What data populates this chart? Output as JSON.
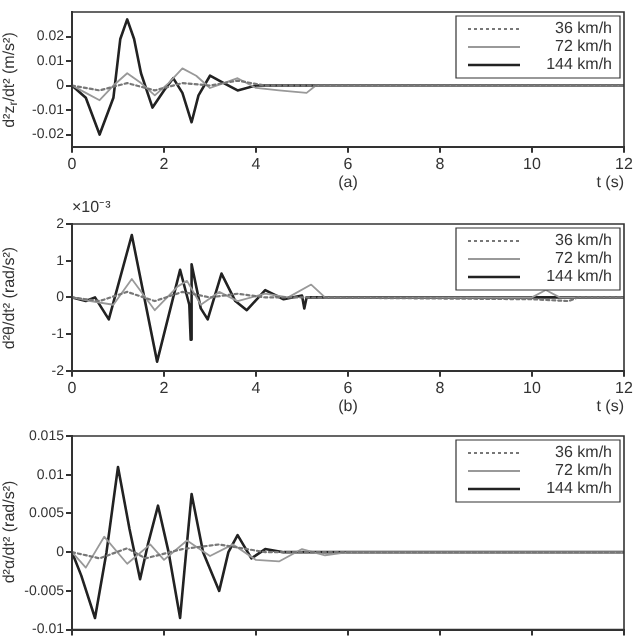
{
  "chart_data": [
    {
      "type": "line",
      "ylabel": "d²z$_{r}$/dt² (m/s²)",
      "xlabel": "t (s)",
      "annotations": [
        "(a)"
      ],
      "xlim": [
        0,
        12
      ],
      "xticks": [
        0,
        2,
        4,
        6,
        8,
        10,
        12
      ],
      "ylim": [
        -0.025,
        0.03
      ],
      "yticks": [
        -0.02,
        -0.01,
        0,
        0.01,
        0.02
      ],
      "grid": false,
      "legend": "top right",
      "series": [
        {
          "name": "36 km/h",
          "color": "#777777",
          "line_style": "dotted",
          "x": [
            0,
            0.6,
            1.2,
            1.8,
            2.4,
            3.0,
            3.6,
            4.2,
            12
          ],
          "values": [
            0,
            -0.002,
            0.001,
            -0.002,
            0.001,
            0,
            0.002,
            0,
            0
          ]
        },
        {
          "name": "72 km/h",
          "color": "#999999",
          "line_style": "solid",
          "x": [
            0,
            0.3,
            0.6,
            0.9,
            1.2,
            1.5,
            1.8,
            2.1,
            2.4,
            2.7,
            3.0,
            3.3,
            3.6,
            4.0,
            4.5,
            5.1,
            5.3,
            6,
            12
          ],
          "values": [
            0,
            -0.003,
            -0.006,
            0,
            0.005,
            0.001,
            -0.004,
            0.001,
            0.007,
            0.004,
            -0.001,
            0.001,
            0.003,
            -0.001,
            -0.002,
            -0.003,
            0,
            0,
            0
          ]
        },
        {
          "name": "144 km/h",
          "color": "#222222",
          "line_style": "solid",
          "x": [
            0,
            0.3,
            0.6,
            0.9,
            1.05,
            1.2,
            1.35,
            1.5,
            1.75,
            2.0,
            2.2,
            2.4,
            2.6,
            2.75,
            3.0,
            3.3,
            3.6,
            4.0,
            4.3,
            6,
            12
          ],
          "values": [
            0,
            -0.005,
            -0.02,
            -0.005,
            0.019,
            0.027,
            0.019,
            0.005,
            -0.009,
            -0.002,
            0.003,
            -0.003,
            -0.015,
            -0.004,
            0.004,
            0.001,
            -0.002,
            0,
            0,
            0,
            0
          ]
        }
      ]
    },
    {
      "type": "line",
      "ylabel": "d²θ/dt² (rad/s²)",
      "xlabel": "t (s)",
      "annotations": [
        "(b)",
        "×10⁻³"
      ],
      "xlim": [
        0,
        12
      ],
      "xticks": [
        0,
        2,
        4,
        6,
        8,
        10,
        12
      ],
      "ylim": [
        -2,
        2
      ],
      "yticks": [
        -2,
        -1,
        0,
        1,
        2
      ],
      "grid": false,
      "legend": "top right",
      "series": [
        {
          "name": "36 km/h",
          "color": "#777777",
          "line_style": "dotted",
          "x": [
            0,
            0.6,
            1.2,
            1.8,
            2.4,
            3.0,
            3.6,
            4.2,
            5,
            10,
            10.8,
            11,
            12
          ],
          "values": [
            0,
            -0.1,
            0.15,
            -0.1,
            0.15,
            0,
            0.1,
            0,
            0,
            -0.05,
            -0.1,
            0,
            0
          ]
        },
        {
          "name": "72 km/h",
          "color": "#999999",
          "line_style": "solid",
          "x": [
            0,
            0.4,
            0.9,
            1.3,
            1.8,
            2.3,
            2.5,
            2.8,
            3.2,
            3.6,
            4.2,
            4.7,
            5.2,
            5.5,
            6,
            10,
            10.3,
            10.6,
            12
          ],
          "values": [
            0,
            -0.1,
            -0.2,
            0.5,
            -0.35,
            0.3,
            0.45,
            -0.2,
            0.15,
            -0.1,
            0.1,
            0,
            0.35,
            0,
            0,
            0,
            0.2,
            0,
            0
          ]
        },
        {
          "name": "144 km/h",
          "color": "#222222",
          "line_style": "solid",
          "x": [
            0,
            0.3,
            0.5,
            0.8,
            1.3,
            1.85,
            2.35,
            2.55,
            2.58,
            2.6,
            2.8,
            2.95,
            3.25,
            3.55,
            3.8,
            4.2,
            4.6,
            5.0,
            5.05,
            5.1,
            6,
            12
          ],
          "values": [
            0,
            -0.1,
            0,
            -0.6,
            1.7,
            -1.75,
            0.75,
            -0.2,
            -1.15,
            0.9,
            -0.3,
            -0.6,
            0.65,
            -0.1,
            -0.35,
            0.2,
            -0.05,
            0.05,
            -0.3,
            0,
            0,
            0
          ]
        }
      ]
    },
    {
      "type": "line",
      "ylabel": "d²α/dt² (rad/s²)",
      "tick_labels": "y",
      "xlim": [
        0,
        12
      ],
      "xticks": [
        0,
        2,
        4,
        6,
        8,
        10,
        12
      ],
      "ylim": [
        -0.01,
        0.015
      ],
      "yticks": [
        -0.01,
        -0.005,
        0,
        0.005,
        0.01,
        0.015
      ],
      "grid": false,
      "legend": "top right",
      "series": [
        {
          "name": "36 km/h",
          "color": "#777777",
          "line_style": "dotted",
          "x": [
            0,
            0.6,
            1.2,
            1.6,
            2.4,
            3.2,
            4.2,
            12
          ],
          "values": [
            0,
            -0.0008,
            0.0005,
            -0.0008,
            0.0004,
            0.001,
            0,
            0
          ]
        },
        {
          "name": "72 km/h",
          "color": "#999999",
          "line_style": "solid",
          "x": [
            0,
            0.3,
            0.7,
            1.2,
            1.7,
            2.0,
            2.5,
            3.0,
            3.5,
            4.0,
            4.5,
            5.0,
            5.5,
            6,
            12
          ],
          "values": [
            0,
            -0.002,
            0.002,
            -0.0015,
            0.001,
            -0.001,
            0.0015,
            -0.0005,
            0.001,
            -0.001,
            -0.0012,
            0.0004,
            -0.0004,
            0,
            0
          ]
        },
        {
          "name": "144 km/h",
          "color": "#222222",
          "line_style": "solid",
          "x": [
            0,
            0.2,
            0.5,
            0.75,
            1.0,
            1.25,
            1.48,
            1.65,
            1.87,
            2.1,
            2.35,
            2.45,
            2.6,
            2.85,
            3.2,
            3.4,
            3.6,
            3.9,
            4.2,
            4.6,
            12
          ],
          "values": [
            0,
            -0.003,
            -0.0085,
            0,
            0.011,
            0.003,
            -0.0035,
            0.001,
            0.006,
            0,
            -0.0085,
            -0.002,
            0.0075,
            0,
            -0.005,
            0,
            0.0022,
            -0.0008,
            0.0004,
            0,
            0
          ]
        }
      ]
    }
  ]
}
